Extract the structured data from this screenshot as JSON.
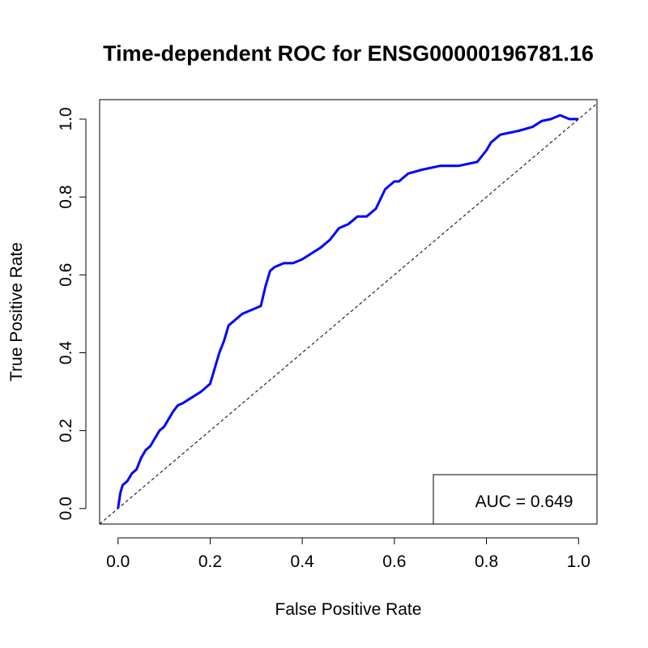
{
  "chart_data": {
    "type": "line",
    "title": "Time-dependent ROC for ENSG00000196781.16",
    "xlabel": "False Positive Rate",
    "ylabel": "True Positive Rate",
    "xlim": [
      -0.04,
      1.04
    ],
    "ylim": [
      -0.04,
      1.05
    ],
    "x_ticks": [
      0.0,
      0.2,
      0.4,
      0.6,
      0.8,
      1.0
    ],
    "x_tick_labels": [
      "0.0",
      "0.2",
      "0.4",
      "0.6",
      "0.8",
      "1.0"
    ],
    "y_ticks": [
      0.0,
      0.2,
      0.4,
      0.6,
      0.8,
      1.0
    ],
    "y_tick_labels": [
      "0.0",
      "0.2",
      "0.4",
      "0.6",
      "0.8",
      "1.0"
    ],
    "grid": false,
    "legend": {
      "position": "bottom-right",
      "text": "AUC = 0.649"
    },
    "reference_line": {
      "x": [
        0,
        1
      ],
      "y": [
        0,
        1
      ],
      "style": "dashed",
      "color": "#000000"
    },
    "series": [
      {
        "color": "#0000ff",
        "x": [
          0.0,
          0.005,
          0.01,
          0.02,
          0.03,
          0.04,
          0.05,
          0.06,
          0.07,
          0.08,
          0.09,
          0.1,
          0.11,
          0.12,
          0.13,
          0.14,
          0.16,
          0.18,
          0.2,
          0.21,
          0.22,
          0.23,
          0.24,
          0.25,
          0.27,
          0.29,
          0.31,
          0.32,
          0.33,
          0.34,
          0.36,
          0.38,
          0.4,
          0.42,
          0.44,
          0.46,
          0.48,
          0.5,
          0.52,
          0.54,
          0.56,
          0.58,
          0.6,
          0.61,
          0.62,
          0.63,
          0.66,
          0.68,
          0.7,
          0.74,
          0.78,
          0.8,
          0.81,
          0.83,
          0.85,
          0.87,
          0.9,
          0.92,
          0.94,
          0.96,
          0.98,
          1.0
        ],
        "y": [
          0.0,
          0.04,
          0.06,
          0.07,
          0.09,
          0.1,
          0.13,
          0.15,
          0.16,
          0.18,
          0.2,
          0.21,
          0.23,
          0.25,
          0.265,
          0.27,
          0.285,
          0.3,
          0.32,
          0.36,
          0.4,
          0.43,
          0.47,
          0.48,
          0.5,
          0.51,
          0.52,
          0.57,
          0.61,
          0.62,
          0.63,
          0.63,
          0.64,
          0.655,
          0.67,
          0.69,
          0.72,
          0.73,
          0.75,
          0.75,
          0.77,
          0.82,
          0.84,
          0.84,
          0.85,
          0.86,
          0.87,
          0.875,
          0.88,
          0.88,
          0.89,
          0.92,
          0.94,
          0.96,
          0.965,
          0.97,
          0.98,
          0.995,
          1.0,
          1.01,
          1.0,
          1.0
        ]
      }
    ]
  }
}
